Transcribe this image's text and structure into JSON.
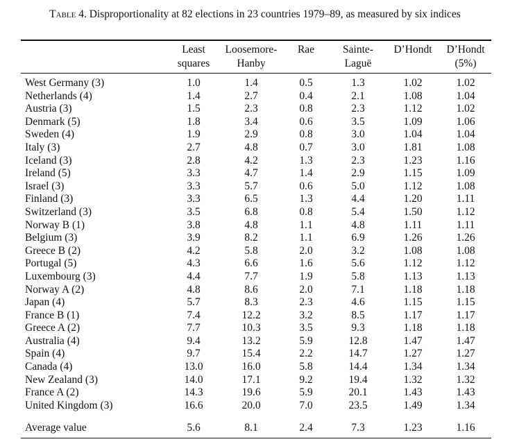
{
  "caption": {
    "label": "Table 4.",
    "text": "Disproportionality at 82 elections in 23 countries 1979–89, as measured by six indices"
  },
  "columns": [
    {
      "line1": "Least",
      "line2": "squares"
    },
    {
      "line1": "Loosemore-",
      "line2": "Hanby"
    },
    {
      "line1": "Rae",
      "line2": ""
    },
    {
      "line1": "Sainte-",
      "line2": "Laguë"
    },
    {
      "line1": "D’Hondt",
      "line2": ""
    },
    {
      "line1": "D’Hondt",
      "line2": "(5%)"
    }
  ],
  "rows": [
    {
      "country": "West Germany (3)",
      "values": [
        "1.0",
        "1.4",
        "0.5",
        "1.3",
        "1.02",
        "1.02"
      ]
    },
    {
      "country": "Netherlands (4)",
      "values": [
        "1.4",
        "2.7",
        "0.4",
        "2.1",
        "1.08",
        "1.04"
      ]
    },
    {
      "country": "Austria (3)",
      "values": [
        "1.5",
        "2.3",
        "0.8",
        "2.3",
        "1.12",
        "1.02"
      ]
    },
    {
      "country": "Denmark (5)",
      "values": [
        "1.8",
        "3.4",
        "0.6",
        "3.5",
        "1.09",
        "1.06"
      ]
    },
    {
      "country": "Sweden (4)",
      "values": [
        "1.9",
        "2.9",
        "0.8",
        "3.0",
        "1.04",
        "1.04"
      ]
    },
    {
      "country": "Italy (3)",
      "values": [
        "2.7",
        "4.8",
        "0.7",
        "3.0",
        "1.81",
        "1.08"
      ]
    },
    {
      "country": "Iceland (3)",
      "values": [
        "2.8",
        "4.2",
        "1.3",
        "2.3",
        "1.23",
        "1.16"
      ]
    },
    {
      "country": "Ireland (5)",
      "values": [
        "3.3",
        "4.7",
        "1.4",
        "2.9",
        "1.15",
        "1.09"
      ]
    },
    {
      "country": "Israel (3)",
      "values": [
        "3.3",
        "5.7",
        "0.6",
        "5.0",
        "1.12",
        "1.08"
      ]
    },
    {
      "country": "Finland (3)",
      "values": [
        "3.3",
        "6.5",
        "1.3",
        "4.4",
        "1.20",
        "1.11"
      ]
    },
    {
      "country": "Switzerland (3)",
      "values": [
        "3.5",
        "6.8",
        "0.8",
        "5.4",
        "1.50",
        "1.12"
      ]
    },
    {
      "country": "Norway B (1)",
      "values": [
        "3.8",
        "4.8",
        "1.1",
        "4.8",
        "1.11",
        "1.11"
      ]
    },
    {
      "country": "Belgium (3)",
      "values": [
        "3.9",
        "8.2",
        "1.1",
        "6.9",
        "1.26",
        "1.26"
      ]
    },
    {
      "country": "Greece B (2)",
      "values": [
        "4.2",
        "5.8",
        "2.0",
        "3.2",
        "1.08",
        "1.08"
      ]
    },
    {
      "country": "Portugal (5)",
      "values": [
        "4.3",
        "6.6",
        "1.6",
        "5.6",
        "1.12",
        "1.12"
      ]
    },
    {
      "country": "Luxembourg (3)",
      "values": [
        "4.4",
        "7.7",
        "1.9",
        "5.8",
        "1.13",
        "1.13"
      ]
    },
    {
      "country": "Norway A (2)",
      "values": [
        "4.8",
        "8.6",
        "2.0",
        "7.1",
        "1.18",
        "1.18"
      ]
    },
    {
      "country": "Japan (4)",
      "values": [
        "5.7",
        "8.3",
        "2.3",
        "4.6",
        "1.15",
        "1.15"
      ]
    },
    {
      "country": "France B (1)",
      "values": [
        "7.4",
        "12.2",
        "3.2",
        "8.5",
        "1.17",
        "1.17"
      ]
    },
    {
      "country": "Greece A (2)",
      "values": [
        "7.7",
        "10.3",
        "3.5",
        "9.3",
        "1.18",
        "1.18"
      ]
    },
    {
      "country": "Australia (4)",
      "values": [
        "9.4",
        "13.2",
        "5.9",
        "12.8",
        "1.47",
        "1.47"
      ]
    },
    {
      "country": "Spain (4)",
      "values": [
        "9.7",
        "15.4",
        "2.2",
        "14.7",
        "1.27",
        "1.27"
      ]
    },
    {
      "country": "Canada (4)",
      "values": [
        "13.0",
        "16.0",
        "5.8",
        "14.4",
        "1.34",
        "1.34"
      ]
    },
    {
      "country": "New Zealand (3)",
      "values": [
        "14.0",
        "17.1",
        "9.2",
        "19.4",
        "1.32",
        "1.32"
      ]
    },
    {
      "country": "France A (2)",
      "values": [
        "14.3",
        "19.6",
        "5.9",
        "20.1",
        "1.43",
        "1.43"
      ]
    },
    {
      "country": "United Kingdom (3)",
      "values": [
        "16.6",
        "20.0",
        "7.0",
        "23.5",
        "1.49",
        "1.34"
      ]
    }
  ],
  "average": {
    "label": "Average value",
    "values": [
      "5.6",
      "8.1",
      "2.4",
      "7.3",
      "1.23",
      "1.16"
    ]
  }
}
